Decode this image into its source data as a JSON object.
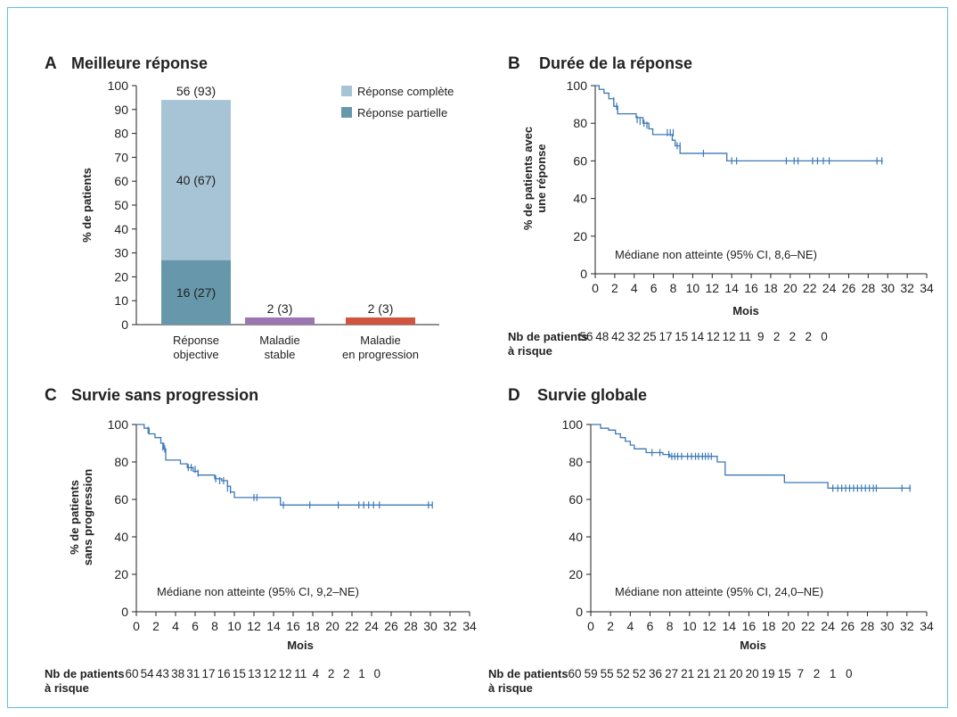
{
  "colors": {
    "frame": "#5bc0de",
    "complete": "#a7c3d6",
    "partial": "#6697aa",
    "stable": "#9b76b0",
    "progression": "#d1543e",
    "km_line": "#3c78b6"
  },
  "chart_data": [
    {
      "id": "A",
      "letter": "A",
      "type": "bar",
      "title": "Meilleure réponse",
      "ylabel": "% de patients",
      "xlabel": "",
      "ylim": [
        0,
        100
      ],
      "yticks": [
        0,
        10,
        20,
        30,
        40,
        50,
        60,
        70,
        80,
        90,
        100
      ],
      "categories": [
        {
          "line1": "Réponse",
          "line2": "objective"
        },
        {
          "line1": "Maladie",
          "line2": "stable"
        },
        {
          "line1": "Maladie",
          "line2": "en progression"
        }
      ],
      "series": [
        {
          "name": "Réponse partielle",
          "color_key": "partial",
          "values": [
            27,
            null,
            null
          ],
          "labels": [
            "16 (27)",
            "",
            ""
          ]
        },
        {
          "name": "Réponse complète",
          "color_key": "complete",
          "values": [
            67,
            null,
            null
          ],
          "labels": [
            "40 (67)",
            "",
            ""
          ]
        },
        {
          "name": "Maladie stable",
          "color_key": "stable",
          "values": [
            null,
            3,
            null
          ],
          "labels": [
            "",
            "2 (3)",
            ""
          ]
        },
        {
          "name": "Maladie en progression",
          "color_key": "progression",
          "values": [
            null,
            null,
            3
          ],
          "labels": [
            "",
            "",
            "2 (3)"
          ]
        }
      ],
      "totals": [
        "56 (93)",
        "",
        ""
      ],
      "legend": [
        {
          "label": "Réponse complète",
          "color_key": "complete"
        },
        {
          "label": "Réponse partielle",
          "color_key": "partial"
        }
      ],
      "legend_position": "top-right"
    },
    {
      "id": "B",
      "letter": "B",
      "type": "line",
      "title": "Durée de la réponse",
      "ylabel_lines": [
        "% de patients avec",
        "une réponse"
      ],
      "xlabel": "Mois",
      "xlim": [
        0,
        34
      ],
      "ylim": [
        0,
        100
      ],
      "xticks": [
        0,
        2,
        4,
        6,
        8,
        10,
        12,
        14,
        16,
        18,
        20,
        22,
        24,
        26,
        28,
        30,
        32,
        34
      ],
      "yticks": [
        0,
        20,
        40,
        60,
        80,
        100
      ],
      "annotation": "Médiane non atteinte (95% CI, 8,6–NE)",
      "step": [
        [
          0,
          100
        ],
        [
          0.4,
          98
        ],
        [
          0.9,
          96
        ],
        [
          1.4,
          93
        ],
        [
          1.9,
          89
        ],
        [
          2.3,
          85
        ],
        [
          4.2,
          83
        ],
        [
          4.9,
          80
        ],
        [
          5.5,
          77
        ],
        [
          5.9,
          74
        ],
        [
          7.9,
          71
        ],
        [
          8.2,
          68
        ],
        [
          8.7,
          64
        ],
        [
          13.2,
          64
        ],
        [
          13.5,
          60
        ],
        [
          29.5,
          60
        ]
      ],
      "censors": [
        [
          1.9,
          92
        ],
        [
          2.2,
          89
        ],
        [
          4.3,
          82
        ],
        [
          4.6,
          81
        ],
        [
          5.0,
          80
        ],
        [
          5.3,
          79
        ],
        [
          7.4,
          75
        ],
        [
          7.7,
          75
        ],
        [
          8.0,
          75
        ],
        [
          8.4,
          68
        ],
        [
          8.7,
          68
        ],
        [
          11.1,
          64
        ],
        [
          14.0,
          60
        ],
        [
          14.5,
          60
        ],
        [
          19.6,
          60
        ],
        [
          20.4,
          60
        ],
        [
          20.8,
          60
        ],
        [
          22.3,
          60
        ],
        [
          22.8,
          60
        ],
        [
          23.4,
          60
        ],
        [
          24.0,
          60
        ],
        [
          28.9,
          60
        ],
        [
          29.4,
          60
        ]
      ],
      "risk_table": {
        "label_line1": "Nb de patients",
        "label_line2": "à risque",
        "values": [
          "56",
          "48",
          "42",
          "32",
          "25",
          "17",
          "15",
          "14",
          "12",
          "12",
          "11",
          "9",
          "2",
          "2",
          "2",
          "0"
        ]
      }
    },
    {
      "id": "C",
      "letter": "C",
      "type": "line",
      "title": "Survie sans progression",
      "ylabel_lines": [
        "% de patients",
        "sans progression"
      ],
      "xlabel": "Mois",
      "xlim": [
        0,
        34
      ],
      "ylim": [
        0,
        100
      ],
      "xticks": [
        0,
        2,
        4,
        6,
        8,
        10,
        12,
        14,
        16,
        18,
        20,
        22,
        24,
        26,
        28,
        30,
        32,
        34
      ],
      "yticks": [
        0,
        20,
        40,
        60,
        80,
        100
      ],
      "annotation": "Médiane non atteinte (95% CI, 9,2–NE)",
      "step": [
        [
          0,
          100
        ],
        [
          0.8,
          98
        ],
        [
          1.3,
          95
        ],
        [
          1.9,
          93
        ],
        [
          2.5,
          90
        ],
        [
          2.8,
          87
        ],
        [
          3.0,
          81
        ],
        [
          4.5,
          79
        ],
        [
          5.2,
          77
        ],
        [
          5.8,
          75
        ],
        [
          6.3,
          73
        ],
        [
          8.0,
          71
        ],
        [
          8.7,
          70
        ],
        [
          9.3,
          67
        ],
        [
          9.6,
          64
        ],
        [
          10.0,
          61
        ],
        [
          14.2,
          61
        ],
        [
          14.7,
          57
        ],
        [
          30.2,
          57
        ]
      ],
      "censors": [
        [
          1.2,
          97
        ],
        [
          2.7,
          88
        ],
        [
          2.9,
          87
        ],
        [
          5.3,
          77
        ],
        [
          5.6,
          77
        ],
        [
          6.0,
          76
        ],
        [
          6.3,
          74
        ],
        [
          8.1,
          71
        ],
        [
          8.5,
          70
        ],
        [
          8.9,
          70
        ],
        [
          9.3,
          66
        ],
        [
          9.6,
          65
        ],
        [
          12.0,
          61
        ],
        [
          12.3,
          61
        ],
        [
          15.0,
          57
        ],
        [
          17.7,
          57
        ],
        [
          20.6,
          57
        ],
        [
          22.7,
          57
        ],
        [
          23.2,
          57
        ],
        [
          23.7,
          57
        ],
        [
          24.2,
          57
        ],
        [
          24.8,
          57
        ],
        [
          29.8,
          57
        ],
        [
          30.2,
          57
        ]
      ],
      "risk_table": {
        "label_line1": "Nb de patients",
        "label_line2": "à risque",
        "values": [
          "60",
          "54",
          "43",
          "38",
          "31",
          "17",
          "16",
          "15",
          "13",
          "12",
          "12",
          "11",
          "4",
          "2",
          "2",
          "1",
          "0"
        ]
      }
    },
    {
      "id": "D",
      "letter": "D",
      "type": "line",
      "title": "Survie globale",
      "ylabel_lines": [],
      "xlabel": "Mois",
      "xlim": [
        0,
        34
      ],
      "ylim": [
        0,
        100
      ],
      "xticks": [
        0,
        2,
        4,
        6,
        8,
        10,
        12,
        14,
        16,
        18,
        20,
        22,
        24,
        26,
        28,
        30,
        32,
        34
      ],
      "yticks": [
        0,
        20,
        40,
        60,
        80,
        100
      ],
      "annotation": "Médiane non atteinte (95% CI, 24,0–NE)",
      "step": [
        [
          0,
          100
        ],
        [
          1.0,
          98
        ],
        [
          1.8,
          97
        ],
        [
          2.5,
          95
        ],
        [
          3.0,
          93
        ],
        [
          3.5,
          91
        ],
        [
          4.0,
          89
        ],
        [
          4.4,
          87
        ],
        [
          5.6,
          85
        ],
        [
          7.3,
          84
        ],
        [
          8.0,
          83
        ],
        [
          12.8,
          80
        ],
        [
          13.6,
          73
        ],
        [
          19.6,
          69
        ],
        [
          24.0,
          66
        ],
        [
          32.4,
          66
        ]
      ],
      "censors": [
        [
          6.2,
          85
        ],
        [
          7.0,
          85
        ],
        [
          7.9,
          84
        ],
        [
          8.2,
          83
        ],
        [
          8.5,
          83
        ],
        [
          8.8,
          83
        ],
        [
          9.2,
          83
        ],
        [
          9.8,
          83
        ],
        [
          10.2,
          83
        ],
        [
          10.6,
          83
        ],
        [
          10.9,
          83
        ],
        [
          11.3,
          83
        ],
        [
          11.6,
          83
        ],
        [
          11.9,
          83
        ],
        [
          12.2,
          83
        ],
        [
          24.5,
          66
        ],
        [
          25.0,
          66
        ],
        [
          25.4,
          66
        ],
        [
          25.8,
          66
        ],
        [
          26.2,
          66
        ],
        [
          26.6,
          66
        ],
        [
          27.0,
          66
        ],
        [
          27.4,
          66
        ],
        [
          27.8,
          66
        ],
        [
          28.2,
          66
        ],
        [
          28.6,
          66
        ],
        [
          28.9,
          66
        ],
        [
          31.5,
          66
        ],
        [
          32.3,
          66
        ]
      ],
      "risk_table": {
        "label_line1": "Nb de patients",
        "label_line2": "à risque",
        "values": [
          "60",
          "59",
          "55",
          "52",
          "52",
          "36",
          "27",
          "21",
          "21",
          "21",
          "20",
          "20",
          "19",
          "15",
          "7",
          "2",
          "1",
          "0"
        ]
      }
    }
  ]
}
